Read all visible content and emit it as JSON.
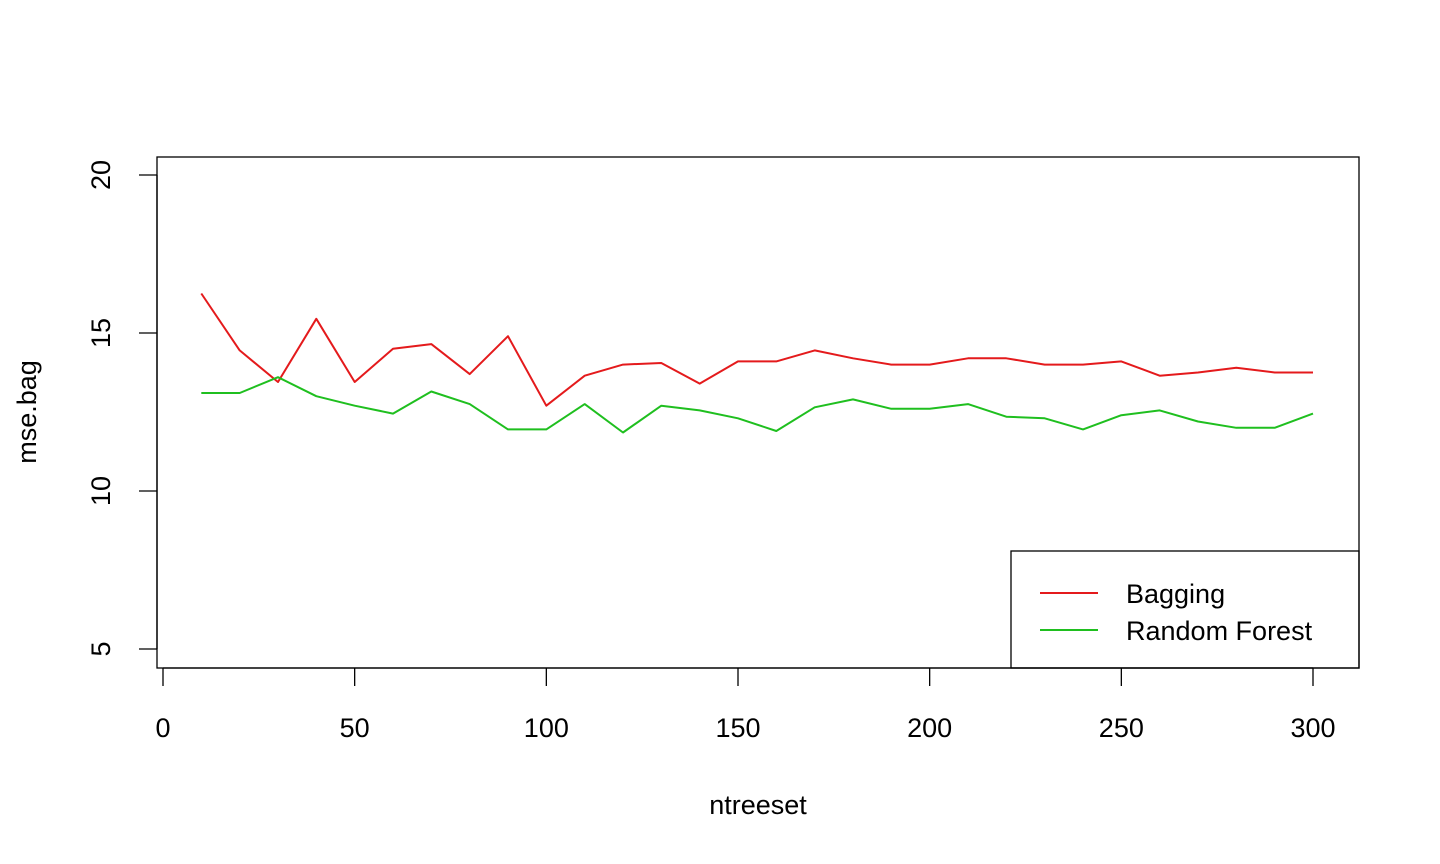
{
  "chart_data": {
    "type": "line",
    "xlabel": "ntreeset",
    "ylabel": "mse.bag",
    "xlim": [
      0,
      300
    ],
    "ylim": [
      5,
      20
    ],
    "x_ticks": [
      "0",
      "50",
      "100",
      "150",
      "200",
      "250",
      "300"
    ],
    "y_ticks": [
      "5",
      "10",
      "15",
      "20"
    ],
    "grid": false,
    "legend_position": "bottom-right",
    "x": [
      10,
      20,
      30,
      40,
      50,
      60,
      70,
      80,
      90,
      100,
      110,
      120,
      130,
      140,
      150,
      160,
      170,
      180,
      190,
      200,
      210,
      220,
      230,
      240,
      250,
      260,
      270,
      280,
      290,
      300
    ],
    "series": [
      {
        "name": "Bagging",
        "color": "#e41a1c",
        "values": [
          16.25,
          14.45,
          13.45,
          15.45,
          13.45,
          14.5,
          14.65,
          13.7,
          14.9,
          12.7,
          13.65,
          14.0,
          14.05,
          13.4,
          14.1,
          14.1,
          14.45,
          14.2,
          14.0,
          14.0,
          14.2,
          14.2,
          14.0,
          14.0,
          14.1,
          13.65,
          13.75,
          13.9,
          13.75,
          13.75
        ]
      },
      {
        "name": "Random Forest",
        "color": "#1fbf1f",
        "values": [
          13.1,
          13.1,
          13.6,
          13.0,
          12.7,
          12.45,
          13.15,
          12.75,
          11.95,
          11.95,
          12.75,
          11.85,
          12.7,
          12.55,
          12.3,
          11.9,
          12.65,
          12.9,
          12.6,
          12.6,
          12.75,
          12.35,
          12.3,
          11.95,
          12.4,
          12.55,
          12.2,
          12.0,
          12.0,
          12.45
        ]
      }
    ]
  }
}
